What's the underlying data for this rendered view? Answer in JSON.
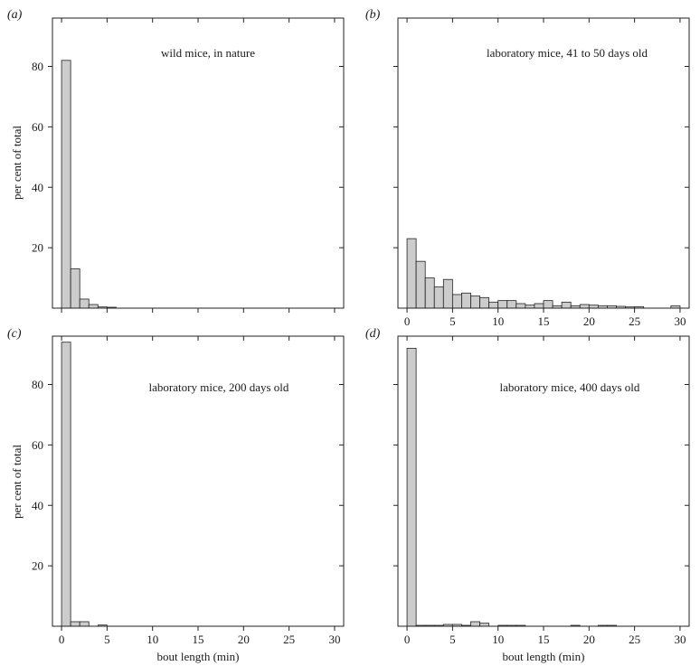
{
  "chart_data": [
    {
      "type": "bar",
      "panel": "(a)",
      "title": "wild mice, in nature",
      "xlabel": "",
      "ylabel": "per cent of total",
      "xlim": [
        -1,
        31
      ],
      "ylim": [
        0,
        96
      ],
      "bin_width": 1,
      "xticks": [
        0,
        5,
        10,
        15,
        20,
        25,
        30
      ],
      "yticks": [
        20,
        40,
        60,
        80
      ],
      "show_xtick_labels": false,
      "show_ytick_labels": true,
      "bins": [
        {
          "x": 0,
          "value": 82
        },
        {
          "x": 1,
          "value": 13
        },
        {
          "x": 2,
          "value": 3
        },
        {
          "x": 3,
          "value": 1.2
        },
        {
          "x": 4,
          "value": 0.4
        },
        {
          "x": 5,
          "value": 0.3
        }
      ]
    },
    {
      "type": "bar",
      "panel": "(b)",
      "title": "laboratory mice, 41 to 50 days old",
      "xlabel": "",
      "ylabel": "",
      "xlim": [
        -1,
        31
      ],
      "ylim": [
        0,
        96
      ],
      "bin_width": 1,
      "xticks": [
        0,
        5,
        10,
        15,
        20,
        25,
        30
      ],
      "yticks": [
        20,
        40,
        60,
        80
      ],
      "show_xtick_labels": true,
      "show_ytick_labels": false,
      "bins": [
        {
          "x": 0,
          "value": 23
        },
        {
          "x": 1,
          "value": 15.5
        },
        {
          "x": 2,
          "value": 10
        },
        {
          "x": 3,
          "value": 7
        },
        {
          "x": 4,
          "value": 9.5
        },
        {
          "x": 5,
          "value": 4.5
        },
        {
          "x": 6,
          "value": 5
        },
        {
          "x": 7,
          "value": 4
        },
        {
          "x": 8,
          "value": 3.5
        },
        {
          "x": 9,
          "value": 2
        },
        {
          "x": 10,
          "value": 2.5
        },
        {
          "x": 11,
          "value": 2.5
        },
        {
          "x": 12,
          "value": 1.5
        },
        {
          "x": 13,
          "value": 1
        },
        {
          "x": 14,
          "value": 1.5
        },
        {
          "x": 15,
          "value": 2.5
        },
        {
          "x": 16,
          "value": 0.8
        },
        {
          "x": 17,
          "value": 2
        },
        {
          "x": 18,
          "value": 0.8
        },
        {
          "x": 19,
          "value": 1.2
        },
        {
          "x": 20,
          "value": 1
        },
        {
          "x": 21,
          "value": 0.8
        },
        {
          "x": 22,
          "value": 0.8
        },
        {
          "x": 23,
          "value": 0.6
        },
        {
          "x": 24,
          "value": 0.4
        },
        {
          "x": 25,
          "value": 0.5
        },
        {
          "x": 29,
          "value": 0.8
        }
      ]
    },
    {
      "type": "bar",
      "panel": "(c)",
      "title": "laboratory mice, 200 days old",
      "xlabel": "bout length (min)",
      "ylabel": "per cent of total",
      "xlim": [
        -1,
        31
      ],
      "ylim": [
        0,
        96
      ],
      "bin_width": 1,
      "xticks": [
        0,
        5,
        10,
        15,
        20,
        25,
        30
      ],
      "yticks": [
        20,
        40,
        60,
        80
      ],
      "show_xtick_labels": true,
      "show_ytick_labels": true,
      "bins": [
        {
          "x": 0,
          "value": 94
        },
        {
          "x": 1,
          "value": 1.5
        },
        {
          "x": 2,
          "value": 1.5
        },
        {
          "x": 4,
          "value": 0.4
        }
      ]
    },
    {
      "type": "bar",
      "panel": "(d)",
      "title": "laboratory mice, 400 days old",
      "xlabel": "bout length (min)",
      "ylabel": "",
      "xlim": [
        -1,
        31
      ],
      "ylim": [
        0,
        96
      ],
      "bin_width": 1,
      "xticks": [
        0,
        5,
        10,
        15,
        20,
        25,
        30
      ],
      "yticks": [
        20,
        40,
        60,
        80
      ],
      "show_xtick_labels": true,
      "show_ytick_labels": false,
      "bins": [
        {
          "x": 0,
          "value": 92
        },
        {
          "x": 1,
          "value": 0.3
        },
        {
          "x": 2,
          "value": 0.3
        },
        {
          "x": 3,
          "value": 0.3
        },
        {
          "x": 4,
          "value": 0.6
        },
        {
          "x": 5,
          "value": 0.6
        },
        {
          "x": 6,
          "value": 0.3
        },
        {
          "x": 7,
          "value": 1.5
        },
        {
          "x": 8,
          "value": 1
        },
        {
          "x": 10,
          "value": 0.3
        },
        {
          "x": 11,
          "value": 0.3
        },
        {
          "x": 12,
          "value": 0.3
        },
        {
          "x": 18,
          "value": 0.3
        },
        {
          "x": 21,
          "value": 0.3
        },
        {
          "x": 22,
          "value": 0.3
        }
      ]
    }
  ]
}
